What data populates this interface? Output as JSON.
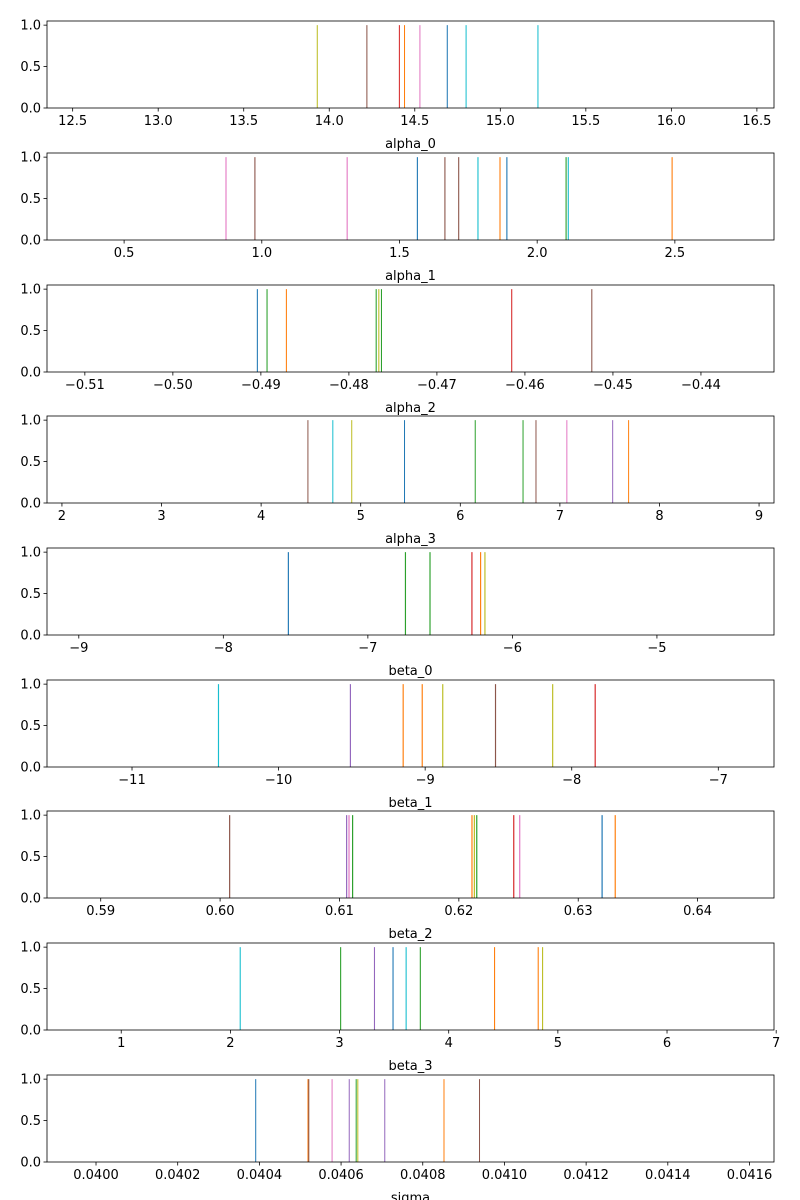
{
  "chart_data": [
    {
      "type": "bar",
      "xlabel": "alpha_0",
      "xlim": [
        12.35,
        16.6
      ],
      "ylim": [
        0,
        1.05
      ],
      "xticks": [
        12.5,
        13.0,
        13.5,
        14.0,
        14.5,
        15.0,
        15.5,
        16.0,
        16.5
      ],
      "xtick_labels": [
        "12.5",
        "13.0",
        "13.5",
        "14.0",
        "14.5",
        "15.0",
        "15.5",
        "16.0",
        "16.5"
      ],
      "yticks": [
        0,
        0.5,
        1.0
      ],
      "ytick_labels": [
        "0.0",
        "0.5",
        "1.0"
      ],
      "bar_height": 1.0,
      "bar_width": 0.006,
      "lines": [
        {
          "x": 13.93,
          "color": "#bcbd22"
        },
        {
          "x": 14.22,
          "color": "#8c564b"
        },
        {
          "x": 14.41,
          "color": "#d62728"
        },
        {
          "x": 14.44,
          "color": "#ff7f0e"
        },
        {
          "x": 14.53,
          "color": "#e377c2"
        },
        {
          "x": 14.69,
          "color": "#1f77b4"
        },
        {
          "x": 14.8,
          "color": "#17becf"
        },
        {
          "x": 15.22,
          "color": "#17becf"
        }
      ]
    },
    {
      "type": "bar",
      "xlabel": "alpha_1",
      "xlim": [
        0.22,
        2.86
      ],
      "ylim": [
        0,
        1.05
      ],
      "xticks": [
        0.5,
        1.0,
        1.5,
        2.0,
        2.5
      ],
      "xtick_labels": [
        "0.5",
        "1.0",
        "1.5",
        "2.0",
        "2.5"
      ],
      "yticks": [
        0,
        0.5,
        1.0
      ],
      "ytick_labels": [
        "0.0",
        "0.5",
        "1.0"
      ],
      "bar_height": 1.0,
      "bar_width": 0.004,
      "lines": [
        {
          "x": 0.87,
          "color": "#e377c2"
        },
        {
          "x": 0.975,
          "color": "#8c564b"
        },
        {
          "x": 1.31,
          "color": "#e377c2"
        },
        {
          "x": 1.565,
          "color": "#1f77b4"
        },
        {
          "x": 1.665,
          "color": "#8c564b"
        },
        {
          "x": 1.715,
          "color": "#8c564b"
        },
        {
          "x": 1.785,
          "color": "#17becf"
        },
        {
          "x": 1.865,
          "color": "#ff7f0e"
        },
        {
          "x": 1.89,
          "color": "#1f77b4"
        },
        {
          "x": 2.105,
          "color": "#2ca02c"
        },
        {
          "x": 2.113,
          "color": "#17becf"
        },
        {
          "x": 2.49,
          "color": "#ff7f0e"
        }
      ]
    },
    {
      "type": "bar",
      "xlabel": "alpha_2",
      "xlim": [
        -0.5143,
        -0.4317
      ],
      "ylim": [
        0,
        1.05
      ],
      "xticks": [
        -0.51,
        -0.5,
        -0.49,
        -0.48,
        -0.47,
        -0.46,
        -0.45,
        -0.44
      ],
      "xtick_labels": [
        "−0.51",
        "−0.50",
        "−0.49",
        "−0.48",
        "−0.47",
        "−0.46",
        "−0.45",
        "−0.44"
      ],
      "yticks": [
        0,
        0.5,
        1.0
      ],
      "ytick_labels": [
        "0.0",
        "0.5",
        "1.0"
      ],
      "bar_height": 1.0,
      "bar_width": 0.00012,
      "lines": [
        {
          "x": -0.4904,
          "color": "#1f77b4"
        },
        {
          "x": -0.4893,
          "color": "#2ca02c"
        },
        {
          "x": -0.4871,
          "color": "#ff7f0e"
        },
        {
          "x": -0.4769,
          "color": "#2ca02c"
        },
        {
          "x": -0.4766,
          "color": "#bcbd22"
        },
        {
          "x": -0.4763,
          "color": "#2ca02c"
        },
        {
          "x": -0.4615,
          "color": "#d62728"
        },
        {
          "x": -0.4524,
          "color": "#8c564b"
        }
      ]
    },
    {
      "type": "bar",
      "xlabel": "alpha_3",
      "xlim": [
        1.85,
        9.15
      ],
      "ylim": [
        0,
        1.05
      ],
      "xticks": [
        2,
        3,
        4,
        5,
        6,
        7,
        8,
        9
      ],
      "xtick_labels": [
        "2",
        "3",
        "4",
        "5",
        "6",
        "7",
        "8",
        "9"
      ],
      "yticks": [
        0,
        0.5,
        1.0
      ],
      "ytick_labels": [
        "0.0",
        "0.5",
        "1.0"
      ],
      "bar_height": 1.0,
      "bar_width": 0.01,
      "lines": [
        {
          "x": 4.47,
          "color": "#8c564b"
        },
        {
          "x": 4.72,
          "color": "#17becf"
        },
        {
          "x": 4.91,
          "color": "#bcbd22"
        },
        {
          "x": 5.44,
          "color": "#1f77b4"
        },
        {
          "x": 6.15,
          "color": "#2ca02c"
        },
        {
          "x": 6.63,
          "color": "#2ca02c"
        },
        {
          "x": 6.76,
          "color": "#8c564b"
        },
        {
          "x": 7.07,
          "color": "#e377c2"
        },
        {
          "x": 7.53,
          "color": "#9467bd"
        },
        {
          "x": 7.69,
          "color": "#ff7f0e"
        }
      ]
    },
    {
      "type": "bar",
      "xlabel": "beta_0",
      "xlim": [
        -9.22,
        -4.19
      ],
      "ylim": [
        0,
        1.05
      ],
      "xticks": [
        -9,
        -8,
        -7,
        -6,
        -5
      ],
      "xtick_labels": [
        "−9",
        "−8",
        "−7",
        "−6",
        "−5"
      ],
      "yticks": [
        0,
        0.5,
        1.0
      ],
      "ytick_labels": [
        "0.0",
        "0.5",
        "1.0"
      ],
      "bar_height": 1.0,
      "bar_width": 0.008,
      "lines": [
        {
          "x": -7.55,
          "color": "#1f77b4"
        },
        {
          "x": -6.74,
          "color": "#2ca02c"
        },
        {
          "x": -6.57,
          "color": "#2ca02c"
        },
        {
          "x": -6.28,
          "color": "#d62728"
        },
        {
          "x": -6.22,
          "color": "#ff7f0e"
        },
        {
          "x": -6.19,
          "color": "#bcbd22"
        }
      ]
    },
    {
      "type": "bar",
      "xlabel": "beta_1",
      "xlim": [
        -11.58,
        -6.62
      ],
      "ylim": [
        0,
        1.05
      ],
      "xticks": [
        -11,
        -10,
        -9,
        -8,
        -7
      ],
      "xtick_labels": [
        "−11",
        "−10",
        "−9",
        "−8",
        "−7"
      ],
      "yticks": [
        0,
        0.5,
        1.0
      ],
      "ytick_labels": [
        "0.0",
        "0.5",
        "1.0"
      ],
      "bar_height": 1.0,
      "bar_width": 0.008,
      "lines": [
        {
          "x": -10.41,
          "color": "#17becf"
        },
        {
          "x": -9.51,
          "color": "#9467bd"
        },
        {
          "x": -9.15,
          "color": "#ff7f0e"
        },
        {
          "x": -9.02,
          "color": "#ff7f0e"
        },
        {
          "x": -8.88,
          "color": "#bcbd22"
        },
        {
          "x": -8.52,
          "color": "#8c564b"
        },
        {
          "x": -8.13,
          "color": "#bcbd22"
        },
        {
          "x": -7.84,
          "color": "#d62728"
        }
      ]
    },
    {
      "type": "bar",
      "xlabel": "beta_2",
      "xlim": [
        0.5855,
        0.6464
      ],
      "ylim": [
        0,
        1.05
      ],
      "xticks": [
        0.59,
        0.6,
        0.61,
        0.62,
        0.63,
        0.64
      ],
      "xtick_labels": [
        "0.59",
        "0.60",
        "0.61",
        "0.62",
        "0.63",
        "0.64"
      ],
      "yticks": [
        0,
        0.5,
        1.0
      ],
      "ytick_labels": [
        "0.0",
        "0.5",
        "1.0"
      ],
      "bar_height": 1.0,
      "bar_width": 0.0001,
      "lines": [
        {
          "x": 0.6008,
          "color": "#8c564b"
        },
        {
          "x": 0.6106,
          "color": "#9467bd"
        },
        {
          "x": 0.6108,
          "color": "#e377c2"
        },
        {
          "x": 0.6111,
          "color": "#2ca02c"
        },
        {
          "x": 0.6211,
          "color": "#ff7f0e"
        },
        {
          "x": 0.6213,
          "color": "#bcbd22"
        },
        {
          "x": 0.6215,
          "color": "#2ca02c"
        },
        {
          "x": 0.6246,
          "color": "#d62728"
        },
        {
          "x": 0.6251,
          "color": "#e377c2"
        },
        {
          "x": 0.632,
          "color": "#1f77b4"
        },
        {
          "x": 0.6331,
          "color": "#ff7f0e"
        }
      ]
    },
    {
      "type": "bar",
      "xlabel": "beta_3",
      "xlim": [
        0.32,
        6.98
      ],
      "ylim": [
        0,
        1.05
      ],
      "xticks": [
        1,
        2,
        3,
        4,
        5,
        6,
        7
      ],
      "xtick_labels": [
        "1",
        "2",
        "3",
        "4",
        "5",
        "6",
        "7"
      ],
      "yticks": [
        0,
        0.5,
        1.0
      ],
      "ytick_labels": [
        "0.0",
        "0.5",
        "1.0"
      ],
      "bar_height": 1.0,
      "bar_width": 0.01,
      "lines": [
        {
          "x": 2.09,
          "color": "#17becf"
        },
        {
          "x": 3.01,
          "color": "#2ca02c"
        },
        {
          "x": 3.32,
          "color": "#9467bd"
        },
        {
          "x": 3.49,
          "color": "#1f77b4"
        },
        {
          "x": 3.61,
          "color": "#17becf"
        },
        {
          "x": 3.74,
          "color": "#2ca02c"
        },
        {
          "x": 4.42,
          "color": "#ff7f0e"
        },
        {
          "x": 4.82,
          "color": "#ff7f0e"
        },
        {
          "x": 4.86,
          "color": "#bcbd22"
        }
      ]
    },
    {
      "type": "bar",
      "xlabel": "sigma",
      "xlim": [
        0.03988,
        0.04166
      ],
      "ylim": [
        0,
        1.05
      ],
      "xticks": [
        0.04,
        0.0402,
        0.0404,
        0.0406,
        0.0408,
        0.041,
        0.0412,
        0.0414,
        0.0416
      ],
      "xtick_labels": [
        "0.0400",
        "0.0402",
        "0.0404",
        "0.0406",
        "0.0408",
        "0.0410",
        "0.0412",
        "0.0414",
        "0.0416"
      ],
      "yticks": [
        0,
        0.5,
        1.0
      ],
      "ytick_labels": [
        "0.0",
        "0.5",
        "1.0"
      ],
      "bar_height": 1.0,
      "bar_width": 2e-06,
      "lines": [
        {
          "x": 0.040391,
          "color": "#1f77b4"
        },
        {
          "x": 0.040519,
          "color": "#ff7f0e"
        },
        {
          "x": 0.040521,
          "color": "#8c564b"
        },
        {
          "x": 0.040578,
          "color": "#e377c2"
        },
        {
          "x": 0.04062,
          "color": "#9467bd"
        },
        {
          "x": 0.040637,
          "color": "#2ca02c"
        },
        {
          "x": 0.040641,
          "color": "#bcbd22"
        },
        {
          "x": 0.040707,
          "color": "#9467bd"
        },
        {
          "x": 0.040852,
          "color": "#ff7f0e"
        },
        {
          "x": 0.040939,
          "color": "#8c564b"
        }
      ]
    }
  ]
}
